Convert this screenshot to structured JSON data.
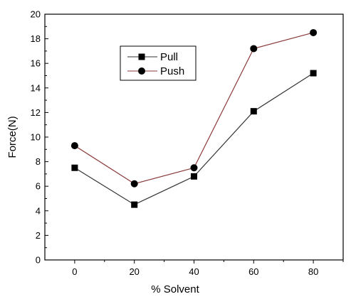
{
  "chart_data": {
    "type": "line",
    "xlabel": "% Solvent",
    "ylabel": "Force(N)",
    "x": [
      0,
      20,
      40,
      60,
      80
    ],
    "xlim": [
      -10,
      90
    ],
    "ylim": [
      0,
      20
    ],
    "x_ticks": [
      0,
      20,
      40,
      60,
      80
    ],
    "y_ticks": [
      0,
      2,
      4,
      6,
      8,
      10,
      12,
      14,
      16,
      18,
      20
    ],
    "grid": false,
    "legend_position": "upper-left inside plot",
    "series": [
      {
        "name": "Pull",
        "marker": "square",
        "color": "#333333",
        "values": [
          7.5,
          4.5,
          6.8,
          12.1,
          15.2
        ]
      },
      {
        "name": "Push",
        "marker": "circle",
        "color": "#8b3a3a",
        "values": [
          9.3,
          6.2,
          7.5,
          17.2,
          18.5
        ]
      }
    ]
  }
}
